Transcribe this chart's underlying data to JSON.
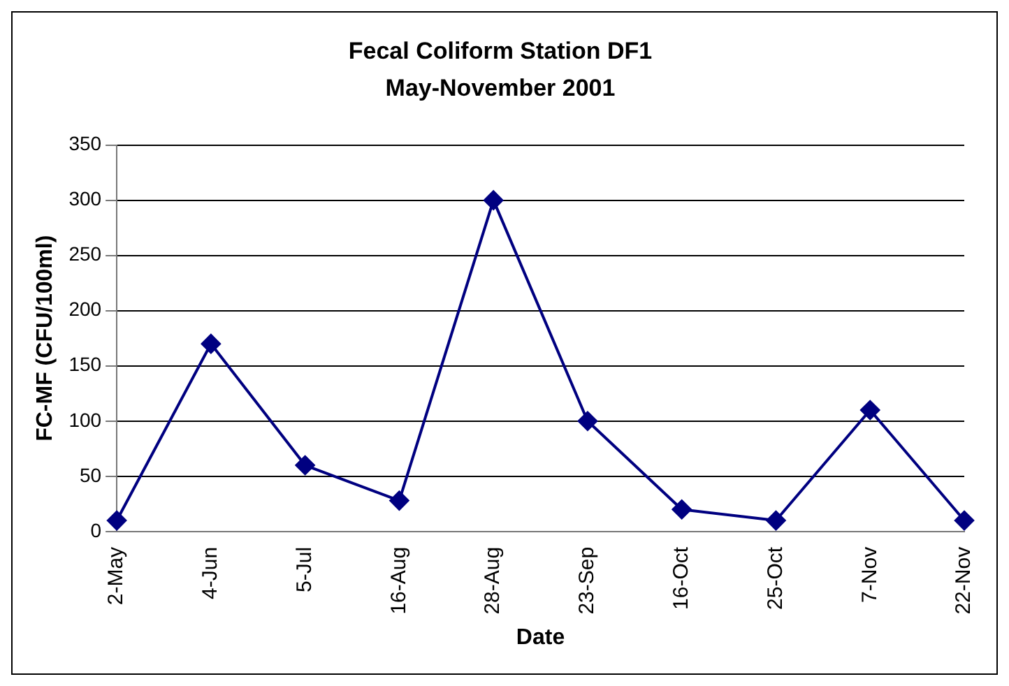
{
  "chart_data": {
    "type": "line",
    "title": "Fecal Coliform Station DF1",
    "subtitle": "May-November 2001",
    "xlabel": "Date",
    "ylabel": "FC-MF (CFU/100ml)",
    "categories": [
      "2-May",
      "4-Jun",
      "5-Jul",
      "16-Aug",
      "28-Aug",
      "23-Sep",
      "16-Oct",
      "25-Oct",
      "7-Nov",
      "22-Nov"
    ],
    "series": [
      {
        "color": "#000080",
        "values": [
          10,
          170,
          60,
          28,
          300,
          100,
          20,
          10,
          110,
          10
        ]
      }
    ],
    "ylim": [
      0,
      350
    ],
    "yticks": [
      0,
      50,
      100,
      150,
      200,
      250,
      300,
      350
    ],
    "grid": "y",
    "legend": false,
    "marker": "diamond",
    "line_style": "solid"
  }
}
